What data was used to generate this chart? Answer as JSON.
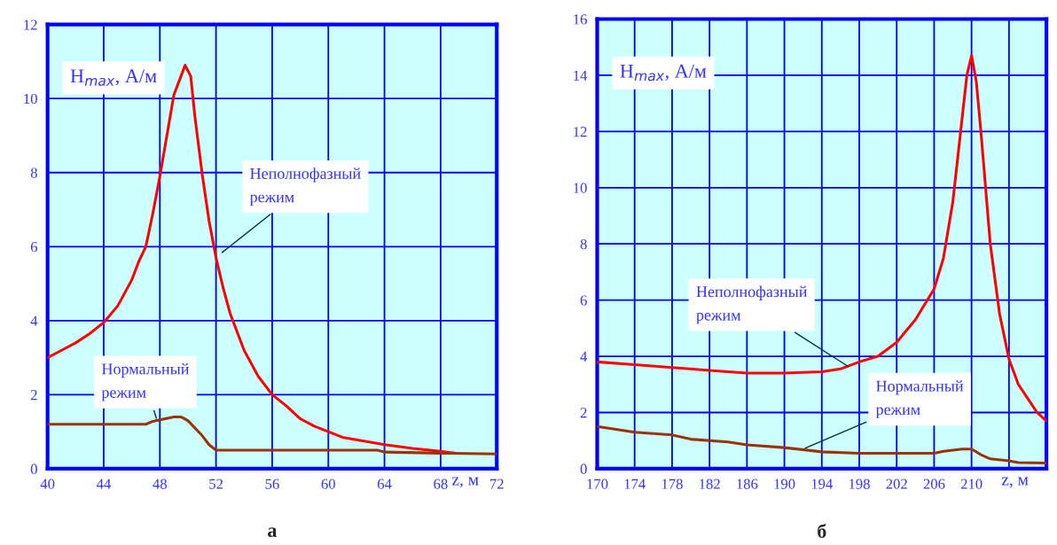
{
  "chart_data": [
    {
      "type": "line",
      "title": "а",
      "xlabel": "z, м",
      "ylabel": "H$_{max}$, А/м",
      "xlim": [
        40,
        72
      ],
      "ylim": [
        0,
        12
      ],
      "xticks": [
        40,
        44,
        48,
        52,
        56,
        60,
        64,
        68,
        72
      ],
      "yticks": [
        0,
        2,
        4,
        6,
        8,
        10,
        12
      ],
      "grid": true,
      "series": [
        {
          "color": "#ff0000",
          "x": [
            40,
            41,
            42,
            43,
            44,
            45,
            46,
            46.5,
            47,
            47.5,
            48,
            48.5,
            49,
            49.5,
            49.8,
            50.2,
            50.5,
            51,
            51.5,
            52,
            52.5,
            53,
            54,
            55,
            56,
            57,
            58,
            59,
            60,
            61,
            62,
            64,
            66,
            68,
            69
          ],
          "values": [
            3.0,
            3.2,
            3.4,
            3.65,
            3.95,
            4.4,
            5.1,
            5.6,
            6.0,
            6.9,
            7.9,
            9.0,
            10.1,
            10.6,
            10.9,
            10.6,
            9.5,
            8.0,
            6.7,
            5.7,
            4.9,
            4.2,
            3.2,
            2.5,
            2.0,
            1.7,
            1.35,
            1.15,
            1.0,
            0.85,
            0.78,
            0.65,
            0.55,
            0.47,
            0.42
          ]
        },
        {
          "color": "#993300",
          "x": [
            40,
            47,
            47.5,
            48,
            49,
            49.5,
            50,
            50.5,
            51,
            51.5,
            52,
            63.5,
            64,
            68,
            72
          ],
          "values": [
            1.2,
            1.2,
            1.28,
            1.32,
            1.4,
            1.4,
            1.3,
            1.1,
            0.9,
            0.65,
            0.5,
            0.5,
            0.45,
            0.42,
            0.4
          ]
        }
      ],
      "annotations": [
        {
          "text": "Неполнофазный\nрежим",
          "x": 52.3,
          "y": 5.8
        },
        {
          "text": "Нормальный\nрежим",
          "x": 47.8,
          "y": 1.3
        }
      ]
    },
    {
      "type": "line",
      "title": "б",
      "xlabel": "z, м",
      "ylabel": "H$_{max}$, А/м",
      "xlim": [
        170,
        218
      ],
      "ylim": [
        0,
        16
      ],
      "xticks": [
        170,
        174,
        178,
        182,
        186,
        190,
        194,
        198,
        202,
        206,
        210,
        {
          "value": 214,
          "label": null
        }
      ],
      "yticks": [
        0,
        2,
        4,
        6,
        8,
        10,
        12,
        14,
        16
      ],
      "grid": true,
      "series": [
        {
          "color": "#ff0000",
          "x": [
            170,
            174,
            178,
            182,
            186,
            190,
            194,
            196,
            198,
            200,
            202,
            204,
            206,
            207,
            208,
            209,
            209.5,
            210,
            210.5,
            211,
            212,
            213,
            214,
            215,
            216,
            217,
            218
          ],
          "values": [
            3.8,
            3.7,
            3.6,
            3.5,
            3.4,
            3.4,
            3.45,
            3.55,
            3.8,
            4.0,
            4.5,
            5.3,
            6.4,
            7.5,
            9.5,
            12.5,
            14.0,
            14.7,
            13.8,
            12.0,
            8.0,
            5.5,
            3.9,
            3.0,
            2.5,
            2.0,
            1.7
          ]
        },
        {
          "color": "#993300",
          "x": [
            170,
            172,
            174,
            178,
            180,
            184,
            186,
            190,
            194,
            198,
            206,
            207,
            209,
            210,
            211,
            212,
            214,
            215,
            218
          ],
          "values": [
            1.5,
            1.4,
            1.3,
            1.2,
            1.05,
            0.95,
            0.85,
            0.75,
            0.6,
            0.55,
            0.55,
            0.62,
            0.7,
            0.7,
            0.5,
            0.35,
            0.28,
            0.22,
            0.2
          ]
        }
      ],
      "annotations": [
        {
          "text": "Неполнофазный\nрежим",
          "x": 197,
          "y": 3.6
        },
        {
          "text": "Нормальный\nрежим",
          "x": 192,
          "y": 0.7
        }
      ]
    }
  ]
}
